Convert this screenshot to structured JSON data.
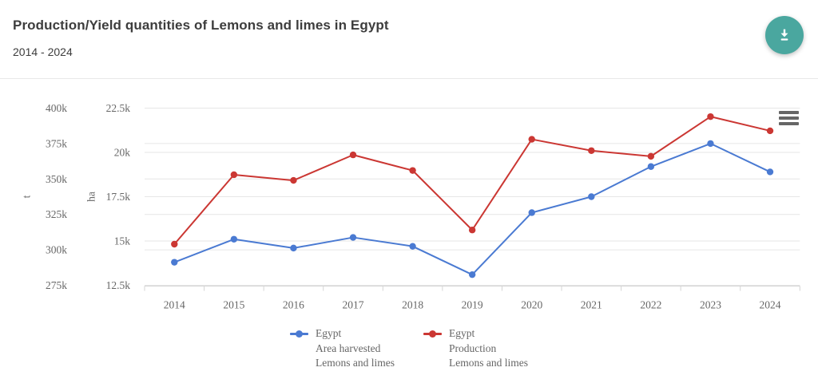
{
  "header": {
    "download_button_tooltip": "Download"
  },
  "icons": {
    "download-icon": "arrow-down-to-line",
    "menu-icon": "three-horizontal-bars"
  },
  "colors": {
    "accent_teal": "#4AA79F",
    "title_text": "#3d3d3d",
    "chart_text": "#666666",
    "gridline": "#e6e6e6",
    "axis_line": "#d4d4d4",
    "series_blue": "#4A7AD2",
    "series_red": "#CB3733"
  },
  "chart_data": {
    "type": "line",
    "title": "Production/Yield quantities of Lemons and limes in Egypt",
    "subtitle": "2014 - 2024",
    "x": [
      2014,
      2015,
      2016,
      2017,
      2018,
      2019,
      2020,
      2021,
      2022,
      2023,
      2024
    ],
    "x_labels": [
      "2014",
      "2015",
      "2016",
      "2017",
      "2018",
      "2019",
      "2020",
      "2021",
      "2022",
      "2023",
      "2024"
    ],
    "grid": true,
    "legend_position": "bottom",
    "axes": {
      "t": {
        "label": "t",
        "min": 275000,
        "max": 400000,
        "ticks": [
          275000,
          300000,
          325000,
          350000,
          375000,
          400000
        ],
        "tick_labels": [
          "275k",
          "300k",
          "325k",
          "350k",
          "375k",
          "400k"
        ]
      },
      "ha": {
        "label": "ha",
        "min": 12500,
        "max": 22500,
        "ticks": [
          12500,
          15000,
          17500,
          20000,
          22500
        ],
        "tick_labels": [
          "12.5k",
          "15k",
          "17.5k",
          "20k",
          "22.5k"
        ]
      }
    },
    "series": [
      {
        "name": "Egypt Area harvested Lemons and limes",
        "legend_lines": [
          "Egypt",
          "Area harvested",
          "Lemons and limes"
        ],
        "axis": "ha",
        "color": "#4A7AD2",
        "values": [
          13800,
          15100,
          14600,
          15200,
          14700,
          13100,
          16600,
          17500,
          19200,
          20500,
          18900
        ]
      },
      {
        "name": "Egypt Production Lemons and limes",
        "legend_lines": [
          "Egypt",
          "Production",
          "Lemons and limes"
        ],
        "axis": "t",
        "color": "#CB3733",
        "values": [
          304000,
          353000,
          349000,
          367000,
          356000,
          314000,
          378000,
          370000,
          366000,
          394000,
          384000
        ]
      }
    ]
  }
}
